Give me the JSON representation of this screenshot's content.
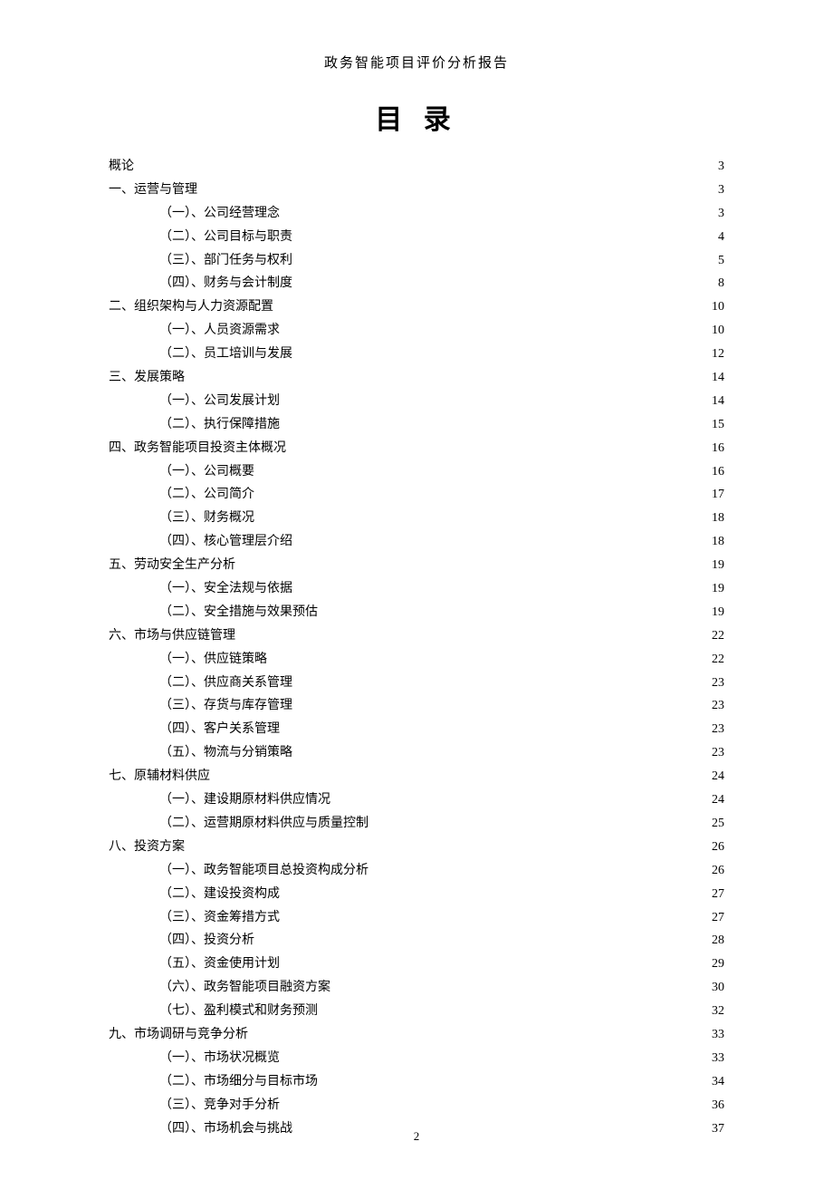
{
  "header": "政务智能项目评价分析报告",
  "title": "目 录",
  "pageNumber": "2",
  "toc": [
    {
      "label": "概论",
      "page": "3",
      "level": 0
    },
    {
      "label": "一、运营与管理",
      "page": "3",
      "level": 0
    },
    {
      "label": "（一）、公司经营理念",
      "page": "3",
      "level": 1
    },
    {
      "label": "（二）、公司目标与职责",
      "page": "4",
      "level": 1
    },
    {
      "label": "（三）、部门任务与权利",
      "page": "5",
      "level": 1
    },
    {
      "label": "（四）、财务与会计制度",
      "page": "8",
      "level": 1
    },
    {
      "label": "二、组织架构与人力资源配置",
      "page": "10",
      "level": 0
    },
    {
      "label": "（一）、人员资源需求",
      "page": "10",
      "level": 1
    },
    {
      "label": "（二）、员工培训与发展",
      "page": "12",
      "level": 1
    },
    {
      "label": "三、发展策略",
      "page": "14",
      "level": 0
    },
    {
      "label": "（一）、公司发展计划",
      "page": "14",
      "level": 1
    },
    {
      "label": "（二）、执行保障措施",
      "page": "15",
      "level": 1
    },
    {
      "label": "四、政务智能项目投资主体概况",
      "page": "16",
      "level": 0
    },
    {
      "label": "（一）、公司概要",
      "page": "16",
      "level": 1
    },
    {
      "label": "（二）、公司简介",
      "page": "17",
      "level": 1
    },
    {
      "label": "（三）、财务概况",
      "page": "18",
      "level": 1
    },
    {
      "label": "（四）、核心管理层介绍",
      "page": "18",
      "level": 1
    },
    {
      "label": "五、劳动安全生产分析",
      "page": "19",
      "level": 0
    },
    {
      "label": "（一）、安全法规与依据",
      "page": "19",
      "level": 1
    },
    {
      "label": "（二）、安全措施与效果预估",
      "page": "19",
      "level": 1
    },
    {
      "label": "六、市场与供应链管理",
      "page": "22",
      "level": 0
    },
    {
      "label": "（一）、供应链策略",
      "page": "22",
      "level": 1
    },
    {
      "label": "（二）、供应商关系管理",
      "page": "23",
      "level": 1
    },
    {
      "label": "（三）、存货与库存管理",
      "page": "23",
      "level": 1
    },
    {
      "label": "（四）、客户关系管理",
      "page": "23",
      "level": 1
    },
    {
      "label": "（五）、物流与分销策略",
      "page": "23",
      "level": 1
    },
    {
      "label": "七、原辅材料供应",
      "page": "24",
      "level": 0
    },
    {
      "label": "（一）、建设期原材料供应情况",
      "page": "24",
      "level": 1
    },
    {
      "label": "（二）、运营期原材料供应与质量控制",
      "page": "25",
      "level": 1
    },
    {
      "label": "八、投资方案",
      "page": "26",
      "level": 0
    },
    {
      "label": "（一）、政务智能项目总投资构成分析",
      "page": "26",
      "level": 1
    },
    {
      "label": "（二）、建设投资构成",
      "page": "27",
      "level": 1
    },
    {
      "label": "（三）、资金筹措方式",
      "page": "27",
      "level": 1
    },
    {
      "label": "（四）、投资分析",
      "page": "28",
      "level": 1
    },
    {
      "label": "（五）、资金使用计划",
      "page": "29",
      "level": 1
    },
    {
      "label": "（六）、政务智能项目融资方案",
      "page": "30",
      "level": 1
    },
    {
      "label": "（七）、盈利模式和财务预测",
      "page": "32",
      "level": 1
    },
    {
      "label": "九、市场调研与竞争分析",
      "page": "33",
      "level": 0
    },
    {
      "label": "（一）、市场状况概览",
      "page": "33",
      "level": 1
    },
    {
      "label": "（二）、市场细分与目标市场",
      "page": "34",
      "level": 1
    },
    {
      "label": "（三）、竞争对手分析",
      "page": "36",
      "level": 1
    },
    {
      "label": "（四）、市场机会与挑战",
      "page": "37",
      "level": 1
    }
  ]
}
